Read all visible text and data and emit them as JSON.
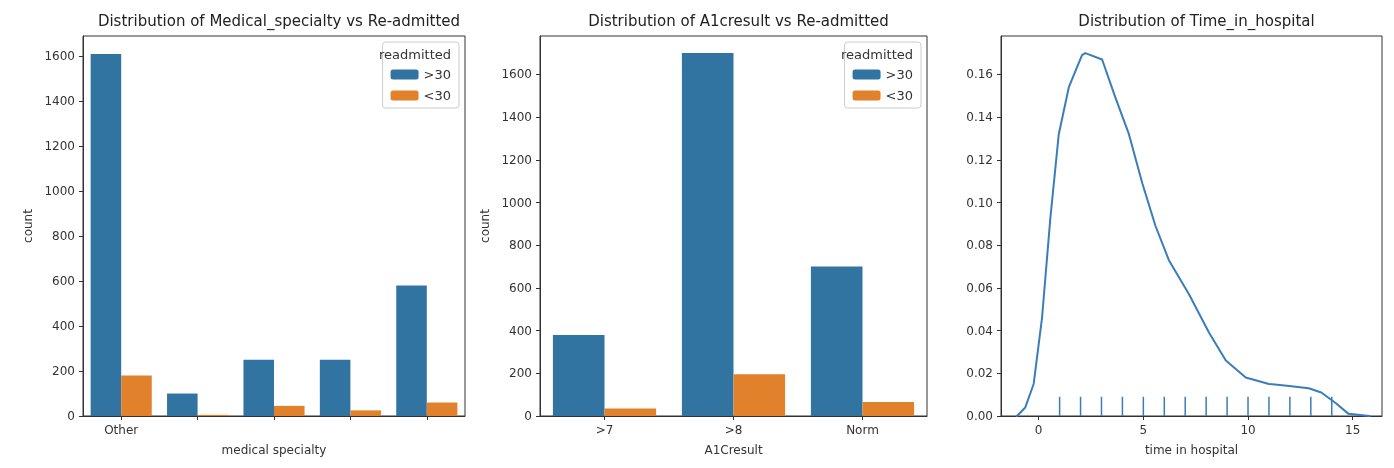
{
  "chart_data": [
    {
      "type": "bar",
      "title": "Distribution of Medical_specialty vs Re-admitted",
      "xlabel": "medical specialty",
      "ylabel": "count",
      "legend_title": "readmitted",
      "legend": "top right",
      "grid": false,
      "categories": [
        "Other",
        null,
        null,
        null,
        null
      ],
      "series": [
        {
          "name": ">30",
          "color": "#3274a1",
          "values": [
            1610,
            100,
            250,
            250,
            580
          ]
        },
        {
          "name": "<30",
          "color": "#e1812c",
          "values": [
            180,
            5,
            45,
            25,
            60
          ]
        }
      ],
      "ylim": [
        0,
        1690
      ],
      "yticks": [
        0,
        200,
        400,
        600,
        800,
        1000,
        1200,
        1400,
        1600
      ]
    },
    {
      "type": "bar",
      "title": "Distribution of A1cresult vs Re-admitted",
      "xlabel": "A1Cresult",
      "ylabel": "count",
      "legend_title": "readmitted",
      "legend": "top right",
      "grid": false,
      "categories": [
        ">7",
        ">8",
        "Norm"
      ],
      "series": [
        {
          "name": ">30",
          "color": "#3274a1",
          "values": [
            380,
            1700,
            700
          ]
        },
        {
          "name": "<30",
          "color": "#e1812c",
          "values": [
            35,
            195,
            65
          ]
        }
      ],
      "ylim": [
        0,
        1780
      ],
      "yticks": [
        0,
        200,
        400,
        600,
        800,
        1000,
        1200,
        1400,
        1600
      ]
    },
    {
      "type": "line",
      "title": "Distribution of Time_in_hospital",
      "xlabel": "time in hospital",
      "grid": false,
      "legend": false,
      "marker": "none",
      "series": [
        {
          "color": "#3a7dbb",
          "x": [
            -1.04,
            -0.64,
            -0.24,
            0.16,
            0.56,
            0.96,
            1.44,
            2.07,
            2.23,
            3.03,
            3.67,
            4.31,
            4.95,
            5.58,
            6.22,
            7.18,
            8.14,
            8.94,
            9.89,
            11.0,
            11.97,
            12.9,
            13.5,
            14.2,
            14.8,
            15.8
          ],
          "values": [
            0.0,
            0.004,
            0.015,
            0.046,
            0.093,
            0.132,
            0.154,
            0.169,
            0.17,
            0.167,
            0.149,
            0.132,
            0.109,
            0.089,
            0.073,
            0.057,
            0.039,
            0.026,
            0.018,
            0.015,
            0.014,
            0.013,
            0.011,
            0.006,
            0.001,
            0.0
          ]
        },
        {
          "type": "bar",
          "color": "#3a7dbb",
          "x": [
            1,
            2,
            3,
            4,
            5,
            6,
            7,
            8,
            9,
            10,
            11,
            12,
            13,
            14
          ],
          "values": [
            0.009,
            0.009,
            0.009,
            0.009,
            0.009,
            0.009,
            0.009,
            0.009,
            0.009,
            0.009,
            0.009,
            0.009,
            0.009,
            0.009
          ]
        }
      ],
      "xlim": [
        -1.8,
        16.4
      ],
      "xticks": [
        0,
        5,
        10,
        15
      ],
      "ylim": [
        0,
        0.178
      ],
      "yticks": [
        {
          "value": 0,
          "label": "0.00"
        },
        {
          "value": 0.02,
          "label": "0.02"
        },
        {
          "value": 0.04,
          "label": "0.04"
        },
        {
          "value": 0.06,
          "label": "0.06"
        },
        {
          "value": 0.08,
          "label": "0.08"
        },
        {
          "value": 0.1,
          "label": "0.10"
        },
        {
          "value": 0.12,
          "label": "0.12"
        },
        {
          "value": 0.14,
          "label": "0.14"
        },
        {
          "value": 0.16,
          "label": "0.16"
        }
      ]
    }
  ]
}
